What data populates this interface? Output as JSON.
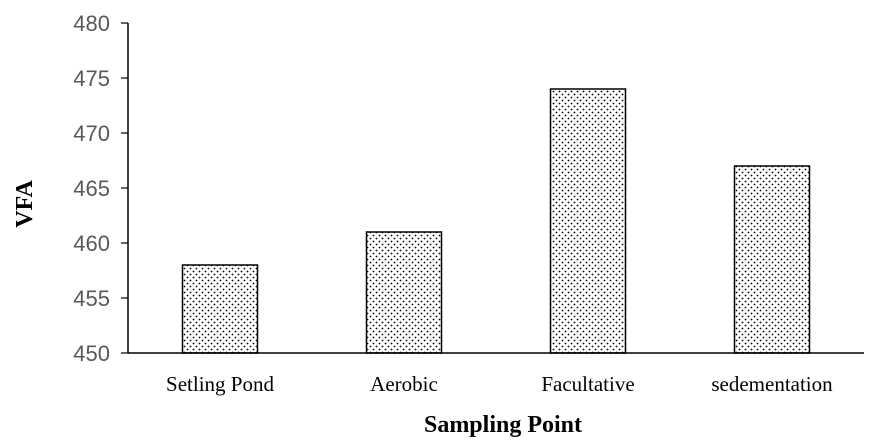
{
  "chart_data": {
    "type": "bar",
    "categories": [
      "Setling Pond",
      "Aerobic",
      "Facultative",
      "sedementation"
    ],
    "values": [
      458,
      461,
      474,
      467
    ],
    "xlabel": "Sampling Point",
    "ylabel": "VFA",
    "ylim": [
      450,
      480
    ],
    "yticks": [
      450,
      455,
      460,
      465,
      470,
      475,
      480
    ],
    "grid": false,
    "legend": "none",
    "bar_fill": "dotted pattern",
    "colors": {
      "bar_stroke": "#000000",
      "dot": "#000000",
      "tick_text": "#595959"
    }
  }
}
